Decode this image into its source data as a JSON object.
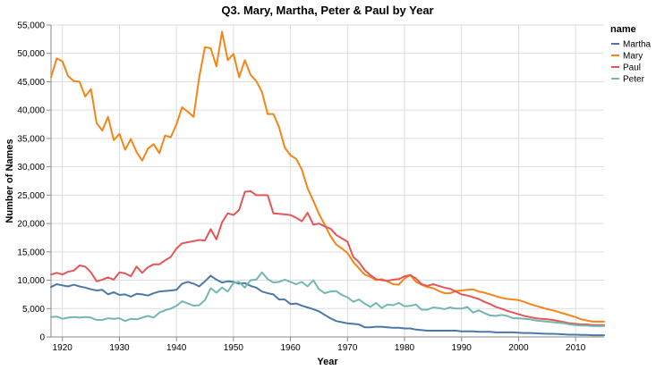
{
  "chart_data": {
    "type": "line",
    "title": "Q3. Mary, Martha, Peter & Paul by Year",
    "xlabel": "Year",
    "ylabel": "Number of Names",
    "xlim": [
      1918,
      2015
    ],
    "ylim": [
      0,
      55000
    ],
    "x_ticks": [
      1920,
      1930,
      1940,
      1950,
      1960,
      1970,
      1980,
      1990,
      2000,
      2010
    ],
    "y_ticks": [
      0,
      5000,
      10000,
      15000,
      20000,
      25000,
      30000,
      35000,
      40000,
      45000,
      50000,
      55000
    ],
    "y_tick_labels": [
      "0",
      "5,000",
      "10,000",
      "15,000",
      "20,000",
      "25,000",
      "30,000",
      "35,000",
      "40,000",
      "45,000",
      "50,000",
      "55,000"
    ],
    "grid": true,
    "legend": {
      "title": "name",
      "position": "right"
    },
    "x": [
      1918,
      1919,
      1920,
      1921,
      1922,
      1923,
      1924,
      1925,
      1926,
      1927,
      1928,
      1929,
      1930,
      1931,
      1932,
      1933,
      1934,
      1935,
      1936,
      1937,
      1938,
      1939,
      1940,
      1941,
      1942,
      1943,
      1944,
      1945,
      1946,
      1947,
      1948,
      1949,
      1950,
      1951,
      1952,
      1953,
      1954,
      1955,
      1956,
      1957,
      1958,
      1959,
      1960,
      1961,
      1962,
      1963,
      1964,
      1965,
      1966,
      1967,
      1968,
      1969,
      1970,
      1971,
      1972,
      1973,
      1974,
      1975,
      1976,
      1977,
      1978,
      1979,
      1980,
      1981,
      1982,
      1983,
      1984,
      1985,
      1986,
      1987,
      1988,
      1989,
      1990,
      1991,
      1992,
      1993,
      1994,
      1995,
      1996,
      1997,
      1998,
      1999,
      2000,
      2001,
      2002,
      2003,
      2004,
      2005,
      2006,
      2007,
      2008,
      2009,
      2010,
      2011,
      2012,
      2013,
      2014,
      2015
    ],
    "series": [
      {
        "name": "Martha",
        "color": "#4c78a8",
        "values": [
          8800,
          9300,
          9100,
          8900,
          9200,
          8900,
          8700,
          8400,
          8200,
          8300,
          7500,
          7900,
          7400,
          7500,
          7100,
          7600,
          7500,
          7300,
          7700,
          8000,
          8100,
          8200,
          8300,
          9400,
          9700,
          9400,
          8900,
          9800,
          10800,
          10100,
          9600,
          9800,
          9700,
          9400,
          9500,
          9000,
          8700,
          8000,
          7700,
          7500,
          6600,
          6600,
          5800,
          5900,
          5500,
          5200,
          4900,
          4500,
          3900,
          3300,
          2800,
          2600,
          2400,
          2300,
          2200,
          1700,
          1700,
          1800,
          1800,
          1700,
          1600,
          1600,
          1500,
          1500,
          1300,
          1200,
          1100,
          1100,
          1100,
          1100,
          1100,
          1100,
          1000,
          1000,
          1000,
          900,
          900,
          900,
          800,
          800,
          800,
          800,
          750,
          700,
          700,
          650,
          600,
          550,
          550,
          500,
          450,
          400,
          400,
          350,
          350,
          300,
          300,
          300
        ]
      },
      {
        "name": "Mary",
        "color": "#f58518",
        "values": [
          45800,
          49100,
          48600,
          46000,
          45100,
          45000,
          42400,
          43700,
          37700,
          36400,
          38800,
          34700,
          35800,
          33000,
          34900,
          32600,
          31100,
          33200,
          34000,
          32400,
          35500,
          35200,
          37500,
          40500,
          39700,
          38800,
          45800,
          51100,
          50900,
          47700,
          53800,
          48800,
          49900,
          45800,
          48800,
          46200,
          45100,
          43200,
          39300,
          39300,
          37000,
          33400,
          32000,
          31400,
          29500,
          26200,
          24000,
          21700,
          19800,
          17800,
          16300,
          15600,
          14800,
          13200,
          12100,
          11000,
          10600,
          10000,
          10200,
          9800,
          9300,
          9200,
          10300,
          10900,
          9700,
          9200,
          8800,
          8600,
          8100,
          7700,
          7700,
          8100,
          8200,
          8300,
          8400,
          8000,
          7800,
          7500,
          7200,
          6900,
          6700,
          6600,
          6500,
          6200,
          5800,
          5500,
          5200,
          4900,
          4700,
          4400,
          4100,
          3800,
          3500,
          3100,
          2900,
          2700,
          2700,
          2700
        ]
      },
      {
        "name": "Paul",
        "color": "#e45756",
        "values": [
          11000,
          11300,
          11000,
          11500,
          11700,
          12600,
          12400,
          11400,
          9800,
          10100,
          10500,
          10100,
          11400,
          11200,
          10700,
          12400,
          11300,
          12300,
          12800,
          12800,
          13500,
          14100,
          15600,
          16500,
          16700,
          16900,
          17100,
          17000,
          19000,
          17200,
          20200,
          21800,
          21500,
          22400,
          25600,
          25700,
          25000,
          25000,
          25000,
          21800,
          21700,
          21600,
          21500,
          21000,
          20400,
          21900,
          19800,
          20000,
          19500,
          19100,
          18000,
          17400,
          16800,
          14100,
          13200,
          11800,
          10900,
          10200,
          10000,
          9900,
          10100,
          10200,
          10700,
          10900,
          10300,
          9300,
          9000,
          9300,
          9000,
          8700,
          8500,
          8000,
          7500,
          7300,
          7000,
          6700,
          6200,
          5800,
          5300,
          5000,
          4600,
          4300,
          4000,
          3700,
          3500,
          3300,
          3200,
          3100,
          3000,
          2800,
          2600,
          2400,
          2300,
          2200,
          2200,
          2100,
          2100,
          2100
        ]
      },
      {
        "name": "Peter",
        "color": "#72b7b2",
        "values": [
          3500,
          3600,
          3200,
          3400,
          3500,
          3400,
          3500,
          3400,
          3000,
          3000,
          3300,
          3200,
          3300,
          2800,
          3200,
          3100,
          3400,
          3700,
          3400,
          4300,
          4700,
          5000,
          5500,
          6300,
          5900,
          5500,
          5600,
          6500,
          8600,
          7800,
          8700,
          8000,
          9500,
          9700,
          8700,
          10000,
          10100,
          11400,
          10200,
          9600,
          9700,
          10100,
          9700,
          9300,
          9700,
          8900,
          10000,
          8400,
          7700,
          8000,
          8100,
          7400,
          7000,
          6200,
          6600,
          5900,
          5300,
          6000,
          5100,
          5700,
          5600,
          6000,
          5400,
          5500,
          5700,
          4800,
          4800,
          5200,
          5100,
          4900,
          5200,
          5000,
          5000,
          5300,
          4300,
          4700,
          4200,
          3800,
          3700,
          3900,
          3700,
          3300,
          3300,
          3200,
          3100,
          2900,
          2800,
          2700,
          2600,
          2500,
          2400,
          2200,
          2100,
          2000,
          2000,
          1900,
          1900,
          1900
        ]
      }
    ]
  }
}
